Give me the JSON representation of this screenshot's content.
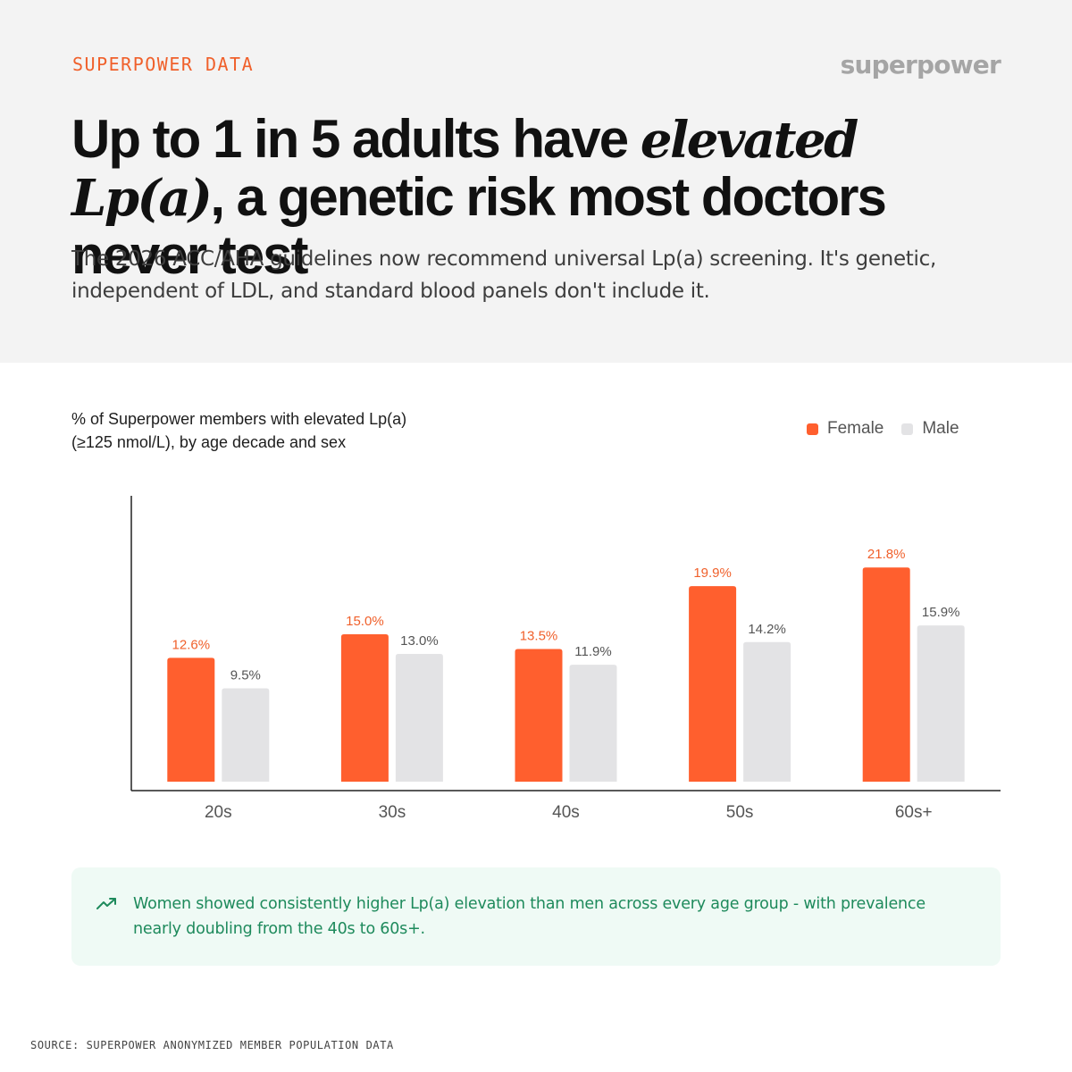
{
  "header": {
    "eyebrow": "SUPERPOWER DATA",
    "brand": "superpower",
    "headline_part1": "Up to 1 in 5 adults have ",
    "headline_emphasis": "elevated Lp(a)",
    "headline_part2": ", a genetic risk most doctors never test",
    "subhead": "The 2026 ACC/AHA guidelines now recommend universal Lp(a) screening. It's genetic, independent of LDL, and standard blood panels don't include it."
  },
  "chart_caption_line1": "% of Superpower members with elevated Lp(a)",
  "chart_caption_line2": "(≥125 nmol/L), by age decade and sex",
  "legend": {
    "female_label": "Female",
    "male_label": "Male"
  },
  "colors": {
    "female": "#ff5f2e",
    "male": "#e3e3e5",
    "female_label": "#f0602b",
    "male_label": "#555555",
    "insight_text": "#1e8a5c"
  },
  "chart_data": {
    "type": "bar",
    "title": "% of Superpower members with elevated Lp(a) (≥125 nmol/L), by age decade and sex",
    "categories": [
      "20s",
      "30s",
      "40s",
      "50s",
      "60s+"
    ],
    "series": [
      {
        "name": "Female",
        "values": [
          12.6,
          15.0,
          13.5,
          19.9,
          21.8
        ],
        "labels": [
          "12.6%",
          "15.0%",
          "13.5%",
          "19.9%",
          "21.8%"
        ]
      },
      {
        "name": "Male",
        "values": [
          9.5,
          13.0,
          11.9,
          14.2,
          15.9
        ],
        "labels": [
          "9.5%",
          "13.0%",
          "11.9%",
          "14.2%",
          "15.9%"
        ]
      }
    ],
    "xlabel": "",
    "ylabel": "",
    "ylim": [
      0,
      30
    ],
    "grid": false,
    "legend_position": "top-right"
  },
  "insight": {
    "icon": "trending-up-icon",
    "text_line1": "Women showed consistently higher Lp(a) elevation than men across every age group - with prevalence",
    "text_line2": "nearly doubling from the 40s to 60s+."
  },
  "source": "SOURCE: SUPERPOWER ANONYMIZED MEMBER POPULATION DATA"
}
